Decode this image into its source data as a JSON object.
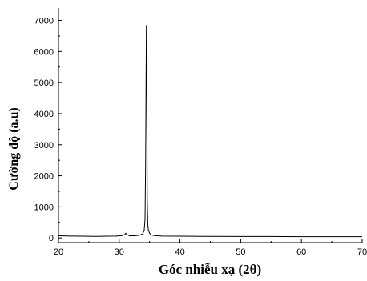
{
  "chart_data": {
    "type": "line",
    "title": "",
    "xlabel": "Góc nhiễu xạ (2θ)",
    "ylabel": "Cường độ (a.u)",
    "xlim": [
      20,
      70
    ],
    "ylim": [
      -150,
      7400
    ],
    "x_ticks": [
      20,
      30,
      40,
      50,
      60,
      70
    ],
    "y_ticks": [
      0,
      1000,
      2000,
      3000,
      4000,
      5000,
      6000,
      7000
    ],
    "grid": false,
    "legend": "none",
    "line_color": "#000000",
    "series": [
      {
        "x": [
          20.0,
          22.0,
          24.0,
          26.0,
          28.0,
          29.5,
          30.5,
          30.9,
          31.1,
          31.3,
          31.7,
          32.5,
          33.3,
          33.8,
          34.1,
          34.25,
          34.35,
          34.42,
          34.47,
          34.52,
          34.57,
          34.62,
          34.7,
          34.8,
          35.0,
          35.3,
          35.8,
          37.0,
          40.0,
          45.0,
          50.0,
          55.0,
          60.0,
          65.0,
          70.0
        ],
        "y": [
          70,
          60,
          55,
          50,
          55,
          60,
          75,
          110,
          150,
          105,
          70,
          70,
          85,
          120,
          220,
          600,
          2500,
          5200,
          6850,
          5900,
          3200,
          1200,
          450,
          250,
          150,
          95,
          75,
          60,
          55,
          50,
          45,
          45,
          40,
          40,
          40
        ]
      }
    ]
  }
}
